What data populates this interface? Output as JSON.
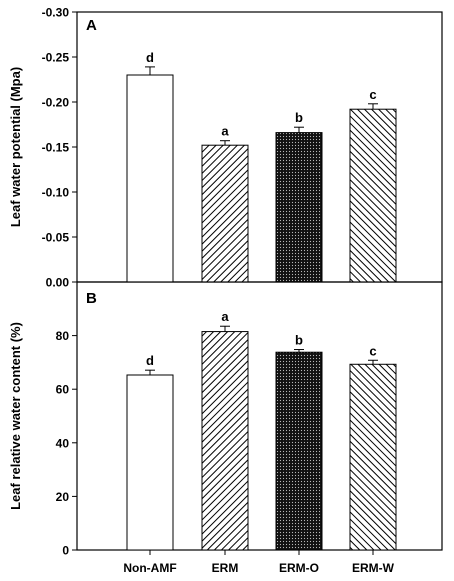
{
  "chart_data": [
    {
      "type": "bar",
      "panel_label": "A",
      "ylabel": "Leaf water potential (Mpa)",
      "categories": [
        "Non-AMF",
        "ERM",
        "ERM-O",
        "ERM-W"
      ],
      "values": [
        -0.23,
        -0.152,
        -0.166,
        -0.192
      ],
      "errors": [
        0.009,
        0.005,
        0.006,
        0.006
      ],
      "significance_letters": [
        "d",
        "a",
        "b",
        "c"
      ],
      "ylim": [
        0,
        -0.3
      ],
      "y_inverted": true,
      "yticks": [
        0.0,
        -0.05,
        -0.1,
        -0.15,
        -0.2,
        -0.25,
        -0.3
      ],
      "ytick_labels": [
        "0.00",
        "-0.05",
        "-0.10",
        "-0.15",
        "-0.20",
        "-0.25",
        "-0.30"
      ],
      "bar_fills": [
        "white",
        "diagonal-hatch",
        "dense-dots",
        "diagonal-hatch-reverse"
      ],
      "grid": false
    },
    {
      "type": "bar",
      "panel_label": "B",
      "ylabel": "Leaf relative water content (%)",
      "categories": [
        "Non-AMF",
        "ERM",
        "ERM-O",
        "ERM-W"
      ],
      "values": [
        65.3,
        81.5,
        73.8,
        69.3
      ],
      "errors": [
        1.8,
        2.0,
        1.0,
        1.5
      ],
      "significance_letters": [
        "d",
        "a",
        "b",
        "c"
      ],
      "ylim": [
        0,
        100
      ],
      "yticks": [
        0,
        20,
        40,
        60,
        80
      ],
      "ytick_labels": [
        "0",
        "20",
        "40",
        "60",
        "80"
      ],
      "bar_fills": [
        "white",
        "diagonal-hatch",
        "dense-dots",
        "diagonal-hatch-reverse"
      ],
      "grid": false
    }
  ]
}
